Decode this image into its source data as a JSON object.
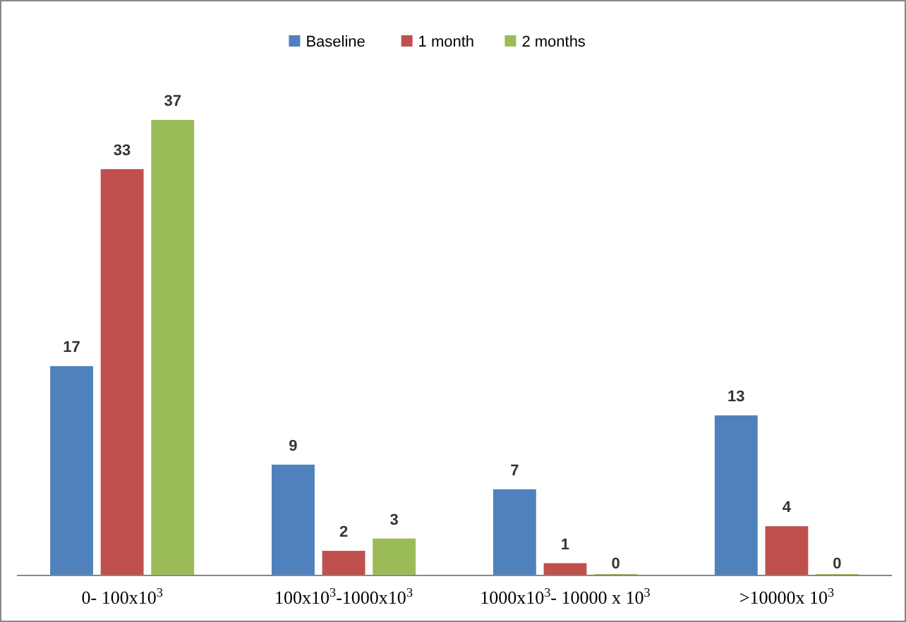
{
  "chart_data": {
    "type": "bar",
    "categories": [
      "0- 100x10$^{3}$",
      "100x10$^{3}$-1000x10$^{3}$",
      "1000x10$^{3}$- 10000 x 10$^{3}$",
      ">10000x 10$^{3}$"
    ],
    "series": [
      {
        "name": "Baseline",
        "color": "#4f81bd",
        "values": [
          17,
          9,
          7,
          13
        ]
      },
      {
        "name": "1 month",
        "color": "#c0504d",
        "values": [
          33,
          2,
          1,
          4
        ]
      },
      {
        "name": "2 months",
        "color": "#9bbb59",
        "values": [
          37,
          3,
          0,
          0
        ]
      }
    ],
    "data_labels": true,
    "legend": "top"
  }
}
